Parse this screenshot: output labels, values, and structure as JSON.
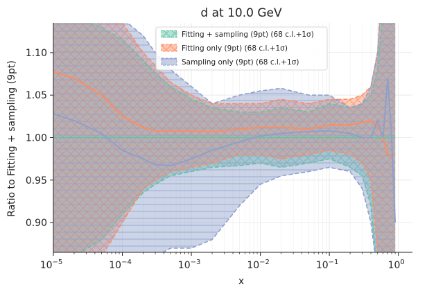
{
  "chart_data": {
    "type": "line",
    "title": "d at 10.0 GeV",
    "xlabel": "x",
    "ylabel": "Ratio to Fitting + sampling (9pt)",
    "xscale": "log",
    "xlim": [
      1e-05,
      1.6
    ],
    "ylim": [
      0.865,
      1.135
    ],
    "xticks": [
      {
        "value": 1e-05,
        "base": "10",
        "exp": "−5"
      },
      {
        "value": 0.0001,
        "base": "10",
        "exp": "−4"
      },
      {
        "value": 0.001,
        "base": "10",
        "exp": "−3"
      },
      {
        "value": 0.01,
        "base": "10",
        "exp": "−2"
      },
      {
        "value": 0.1,
        "base": "10",
        "exp": "−1"
      },
      {
        "value": 1,
        "base": "10",
        "exp": "0"
      }
    ],
    "yticks": [
      {
        "value": 0.9,
        "label": "0.90"
      },
      {
        "value": 0.95,
        "label": "0.95"
      },
      {
        "value": 1.0,
        "label": "1.00"
      },
      {
        "value": 1.05,
        "label": "1.05"
      },
      {
        "value": 1.1,
        "label": "1.10"
      }
    ],
    "grid": true,
    "legend_position": "top-center",
    "x": [
      1e-05,
      2e-05,
      5e-05,
      0.0001,
      0.0002,
      0.0003,
      0.0005,
      0.001,
      0.002,
      0.005,
      0.01,
      0.02,
      0.05,
      0.1,
      0.2,
      0.3,
      0.4,
      0.5,
      0.6,
      0.7,
      0.8,
      0.9
    ],
    "series": [
      {
        "name": "Fitting + sampling (9pt) (68 c.l.+1σ)",
        "color": "#66c2a5",
        "hatch": "x",
        "central": [
          1.0,
          1.0,
          1.0,
          1.0,
          1.0,
          1.0,
          1.0,
          1.0,
          1.0,
          1.0,
          1.0,
          1.0,
          1.0,
          1.0,
          1.0,
          1.0,
          1.0,
          1.0,
          1.0,
          1.0,
          1.0,
          1.0
        ],
        "upper": [
          1.18,
          1.14,
          1.13,
          1.115,
          1.09,
          1.075,
          1.06,
          1.045,
          1.035,
          1.03,
          1.03,
          1.035,
          1.03,
          1.04,
          1.035,
          1.04,
          1.05,
          1.08,
          1.15,
          1.2,
          1.2,
          1.2
        ],
        "lower": [
          0.82,
          0.86,
          0.88,
          0.91,
          0.935,
          0.945,
          0.955,
          0.96,
          0.965,
          0.967,
          0.97,
          0.965,
          0.97,
          0.975,
          0.965,
          0.955,
          0.92,
          0.83,
          0.8,
          0.8,
          0.8,
          0.8
        ]
      },
      {
        "name": "Fitting only (9pt) (68 c.l.+1σ)",
        "color": "#fc8d62",
        "hatch": "x",
        "central": [
          1.077,
          1.07,
          1.05,
          1.025,
          1.012,
          1.008,
          1.008,
          1.008,
          1.007,
          1.01,
          1.012,
          1.012,
          1.01,
          1.015,
          1.015,
          1.018,
          1.02,
          1.015,
          1.0,
          0.98,
          0.98,
          0.98
        ],
        "upper": [
          1.2,
          1.16,
          1.14,
          1.135,
          1.1,
          1.085,
          1.065,
          1.05,
          1.04,
          1.04,
          1.04,
          1.045,
          1.04,
          1.045,
          1.045,
          1.05,
          1.06,
          1.1,
          1.2,
          1.2,
          1.2,
          1.2
        ],
        "lower": [
          0.8,
          0.84,
          0.86,
          0.9,
          0.94,
          0.95,
          0.96,
          0.965,
          0.97,
          0.98,
          0.98,
          0.975,
          0.98,
          0.985,
          0.98,
          0.97,
          0.95,
          0.87,
          0.8,
          0.8,
          0.8,
          0.8
        ]
      },
      {
        "name": "Sampling only (9pt) (68 c.l.+1σ)",
        "color": "#8da0cb",
        "hatch": "-",
        "central": [
          1.028,
          1.02,
          1.005,
          0.985,
          0.975,
          0.968,
          0.967,
          0.975,
          0.985,
          0.995,
          1.002,
          1.005,
          1.007,
          1.008,
          1.005,
          1.0,
          1.0,
          1.02,
          1.0,
          1.07,
          1.0,
          0.9
        ],
        "upper": [
          1.2,
          1.2,
          1.16,
          1.14,
          1.12,
          1.1,
          1.08,
          1.06,
          1.04,
          1.05,
          1.055,
          1.058,
          1.05,
          1.05,
          1.035,
          1.04,
          1.06,
          1.1,
          1.2,
          1.2,
          1.2,
          1.2
        ],
        "lower": [
          0.8,
          0.8,
          0.8,
          0.83,
          0.85,
          0.86,
          0.87,
          0.87,
          0.88,
          0.92,
          0.945,
          0.955,
          0.96,
          0.965,
          0.96,
          0.94,
          0.9,
          0.84,
          0.8,
          0.8,
          0.8,
          0.8
        ]
      }
    ]
  }
}
